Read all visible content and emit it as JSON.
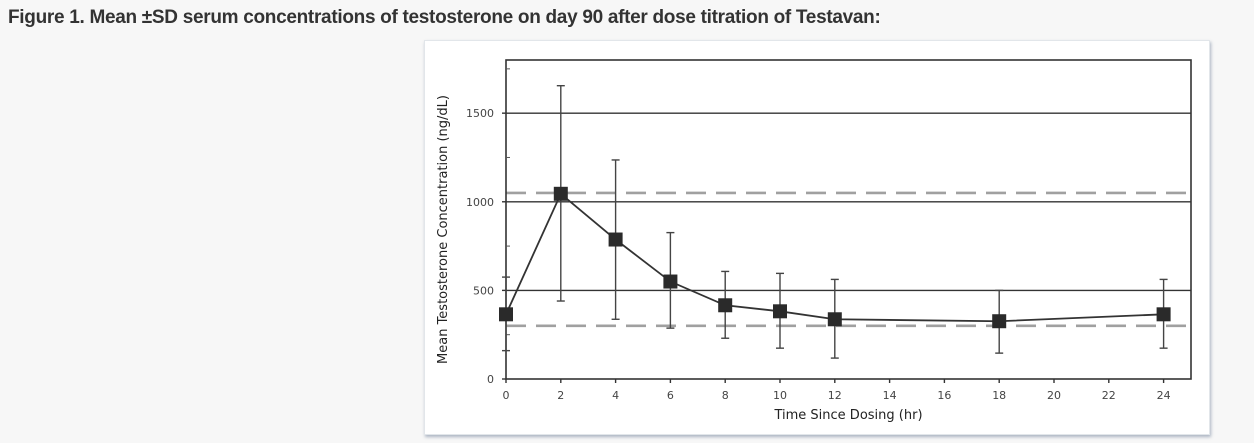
{
  "caption": "Figure 1. Mean ±SD serum concentrations of testosterone on day 90 after dose titration of Testavan:",
  "chart_data": {
    "type": "line",
    "title": "",
    "xlabel": "Time Since Dosing (hr)",
    "ylabel": "Mean Testosterone Concentration (ng/dL)",
    "xlim": [
      0,
      25
    ],
    "ylim": [
      0,
      1800
    ],
    "xticks": [
      0,
      2,
      4,
      6,
      8,
      10,
      12,
      14,
      16,
      18,
      20,
      22,
      24
    ],
    "yticks": [
      0,
      500,
      1000,
      1500
    ],
    "grid_y": [
      500,
      1000,
      1500
    ],
    "reference_lines": [
      {
        "name": "upper-reference",
        "y": 1050,
        "style": "dashed",
        "color": "#a0a0a0"
      },
      {
        "name": "lower-reference",
        "y": 300,
        "style": "dashed",
        "color": "#a0a0a0"
      }
    ],
    "legend": "none",
    "series": [
      {
        "name": "Mean testosterone",
        "marker": "square",
        "color": "#2a2a2a",
        "x": [
          0,
          2,
          4,
          6,
          8,
          10,
          12,
          18,
          24
        ],
        "y": [
          365,
          1045,
          787,
          550,
          416,
          382,
          337,
          326,
          365
        ],
        "err_low": [
          160,
          440,
          337,
          287,
          230,
          174,
          118,
          146,
          174
        ],
        "err_high": [
          575,
          1655,
          1236,
          826,
          607,
          596,
          562,
          500,
          562
        ]
      }
    ]
  }
}
